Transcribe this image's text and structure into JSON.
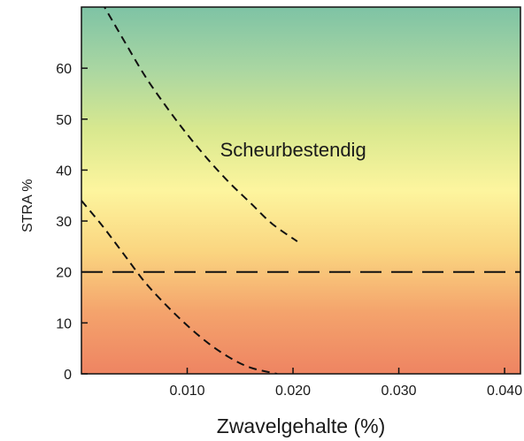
{
  "chart_data": {
    "type": "line",
    "title": "",
    "xlabel": "Zwavelgehalte (%)",
    "ylabel": "STRA %",
    "xlim": [
      0.0,
      0.0415
    ],
    "ylim": [
      0,
      72
    ],
    "x_ticks": [
      0.01,
      0.02,
      0.03,
      0.04
    ],
    "x_tick_labels": [
      "0.010",
      "0.020",
      "0.030",
      "0.040"
    ],
    "y_ticks": [
      0,
      10,
      20,
      30,
      40,
      50,
      60
    ],
    "y_tick_labels": [
      "0",
      "10",
      "20",
      "30",
      "40",
      "50",
      "60"
    ],
    "grid": false,
    "legend": "none",
    "background_gradient": [
      "#7ec3a5",
      "#a9d6a2",
      "#d8e88f",
      "#fdf59e",
      "#fad580",
      "#f4a36c",
      "#ee8462"
    ],
    "series": [
      {
        "style": "dashed",
        "color": "#111111",
        "x": [
          0.0019,
          0.004,
          0.006,
          0.008,
          0.01,
          0.012,
          0.014,
          0.016,
          0.018,
          0.0204
        ],
        "y": [
          73.0,
          65.5,
          58.5,
          52.5,
          47.0,
          42.0,
          37.5,
          33.5,
          29.5,
          26.0
        ]
      },
      {
        "style": "dashed",
        "color": "#111111",
        "x": [
          0.0,
          0.002,
          0.004,
          0.006,
          0.008,
          0.01,
          0.012,
          0.014,
          0.016,
          0.0185
        ],
        "y": [
          34.0,
          29.0,
          23.5,
          18.0,
          13.5,
          9.5,
          6.0,
          3.2,
          1.2,
          0.0
        ]
      },
      {
        "style": "long-dashed",
        "color": "#111111",
        "x": [
          0.0,
          0.0415
        ],
        "y": [
          20,
          20
        ]
      }
    ],
    "annotations": [
      {
        "text": "Scheurbestendig",
        "x": 0.0131,
        "y": 42.7
      }
    ]
  }
}
